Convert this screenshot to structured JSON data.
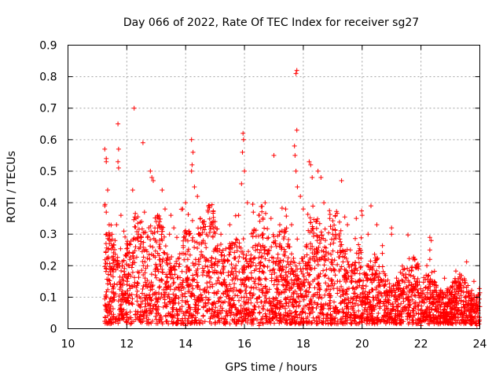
{
  "chart_data": {
    "type": "scatter",
    "title": "Day 066 of 2022, Rate Of TEC Index for receiver sg27",
    "xlabel": "GPS time / hours",
    "ylabel": "ROTI / TECUs",
    "xlim": [
      10,
      24
    ],
    "ylim": [
      0,
      0.9
    ],
    "xticks": [
      10,
      12,
      14,
      16,
      18,
      20,
      22,
      24
    ],
    "xtick_labels": [
      "10",
      "12",
      "14",
      "16",
      "18",
      "20",
      "22",
      "24"
    ],
    "yticks": [
      0,
      0.1,
      0.2,
      0.3,
      0.4,
      0.5,
      0.6,
      0.7,
      0.8,
      0.9
    ],
    "ytick_labels": [
      "0",
      "0.1",
      "0.2",
      "0.3",
      "0.4",
      "0.5",
      "0.6",
      "0.7",
      "0.8",
      "0.9"
    ],
    "grid": true,
    "marker": "+",
    "color": "#ff0000",
    "series": [
      {
        "name": "ROTI",
        "points": [
          [
            11.25,
            0.57
          ],
          [
            11.3,
            0.54
          ],
          [
            11.3,
            0.53
          ],
          [
            11.35,
            0.44
          ],
          [
            11.25,
            0.39
          ],
          [
            11.3,
            0.37
          ],
          [
            11.4,
            0.33
          ],
          [
            11.5,
            0.3
          ],
          [
            11.6,
            0.28
          ],
          [
            11.7,
            0.65
          ],
          [
            11.72,
            0.57
          ],
          [
            11.7,
            0.53
          ],
          [
            11.72,
            0.51
          ],
          [
            11.65,
            0.33
          ],
          [
            11.8,
            0.36
          ],
          [
            11.9,
            0.31
          ],
          [
            12.0,
            0.27
          ],
          [
            12.2,
            0.44
          ],
          [
            12.25,
            0.7
          ],
          [
            12.4,
            0.3
          ],
          [
            12.5,
            0.34
          ],
          [
            12.6,
            0.37
          ],
          [
            12.55,
            0.59
          ],
          [
            12.7,
            0.29
          ],
          [
            12.8,
            0.5
          ],
          [
            12.85,
            0.48
          ],
          [
            12.9,
            0.47
          ],
          [
            13.0,
            0.34
          ],
          [
            13.2,
            0.44
          ],
          [
            13.3,
            0.38
          ],
          [
            13.5,
            0.36
          ],
          [
            13.6,
            0.32
          ],
          [
            13.7,
            0.29
          ],
          [
            13.9,
            0.38
          ],
          [
            14.0,
            0.4
          ],
          [
            14.2,
            0.6
          ],
          [
            14.25,
            0.56
          ],
          [
            14.22,
            0.52
          ],
          [
            14.2,
            0.5
          ],
          [
            14.3,
            0.45
          ],
          [
            14.4,
            0.42
          ],
          [
            14.5,
            0.35
          ],
          [
            14.7,
            0.3
          ],
          [
            14.9,
            0.33
          ],
          [
            15.0,
            0.34
          ],
          [
            15.2,
            0.3
          ],
          [
            15.5,
            0.33
          ],
          [
            15.8,
            0.36
          ],
          [
            15.95,
            0.62
          ],
          [
            15.97,
            0.6
          ],
          [
            15.93,
            0.56
          ],
          [
            16.0,
            0.5
          ],
          [
            15.9,
            0.46
          ],
          [
            16.1,
            0.4
          ],
          [
            16.3,
            0.37
          ],
          [
            16.5,
            0.36
          ],
          [
            16.7,
            0.4
          ],
          [
            16.9,
            0.35
          ],
          [
            17.0,
            0.55
          ],
          [
            17.2,
            0.33
          ],
          [
            17.4,
            0.38
          ],
          [
            17.6,
            0.33
          ],
          [
            17.7,
            0.58
          ],
          [
            17.72,
            0.55
          ],
          [
            17.75,
            0.5
          ],
          [
            17.78,
            0.63
          ],
          [
            17.75,
            0.81
          ],
          [
            17.78,
            0.82
          ],
          [
            17.8,
            0.45
          ],
          [
            17.9,
            0.42
          ],
          [
            18.0,
            0.38
          ],
          [
            18.2,
            0.53
          ],
          [
            18.25,
            0.52
          ],
          [
            18.3,
            0.48
          ],
          [
            18.5,
            0.5
          ],
          [
            18.6,
            0.48
          ],
          [
            18.7,
            0.4
          ],
          [
            19.0,
            0.3
          ],
          [
            19.3,
            0.47
          ],
          [
            19.5,
            0.33
          ],
          [
            19.8,
            0.35
          ],
          [
            20.0,
            0.36
          ],
          [
            20.2,
            0.3
          ],
          [
            20.3,
            0.39
          ],
          [
            20.5,
            0.22
          ],
          [
            20.8,
            0.15
          ],
          [
            21.0,
            0.3
          ],
          [
            21.2,
            0.14
          ],
          [
            21.5,
            0.11
          ],
          [
            22.0,
            0.1
          ],
          [
            22.2,
            0.2
          ],
          [
            22.3,
            0.29
          ],
          [
            22.35,
            0.28
          ],
          [
            22.5,
            0.12
          ],
          [
            22.8,
            0.16
          ],
          [
            23.0,
            0.08
          ],
          [
            23.5,
            0.1
          ],
          [
            23.8,
            0.15
          ],
          [
            24.0,
            0.07
          ],
          [
            22.3,
            0.25
          ],
          [
            22.3,
            0.22
          ],
          [
            20.5,
            0.33
          ],
          [
            21.0,
            0.32
          ],
          [
            19.6,
            0.25
          ],
          [
            18.9,
            0.35
          ],
          [
            16.6,
            0.3
          ],
          [
            15.5,
            0.27
          ],
          [
            14.6,
            0.28
          ],
          [
            13.1,
            0.26
          ],
          [
            12.1,
            0.22
          ],
          [
            11.5,
            0.02
          ],
          [
            11.6,
            0.03
          ],
          [
            12.5,
            0.02
          ],
          [
            13.0,
            0.03
          ],
          [
            14.0,
            0.01
          ],
          [
            15.0,
            0.02
          ],
          [
            16.5,
            0.01
          ],
          [
            17.9,
            0.02
          ],
          [
            19.0,
            0.03
          ],
          [
            20.0,
            0.02
          ],
          [
            21.0,
            0.02
          ],
          [
            22.0,
            0.01
          ],
          [
            23.0,
            0.02
          ],
          [
            23.9,
            0.01
          ]
        ]
      }
    ]
  }
}
